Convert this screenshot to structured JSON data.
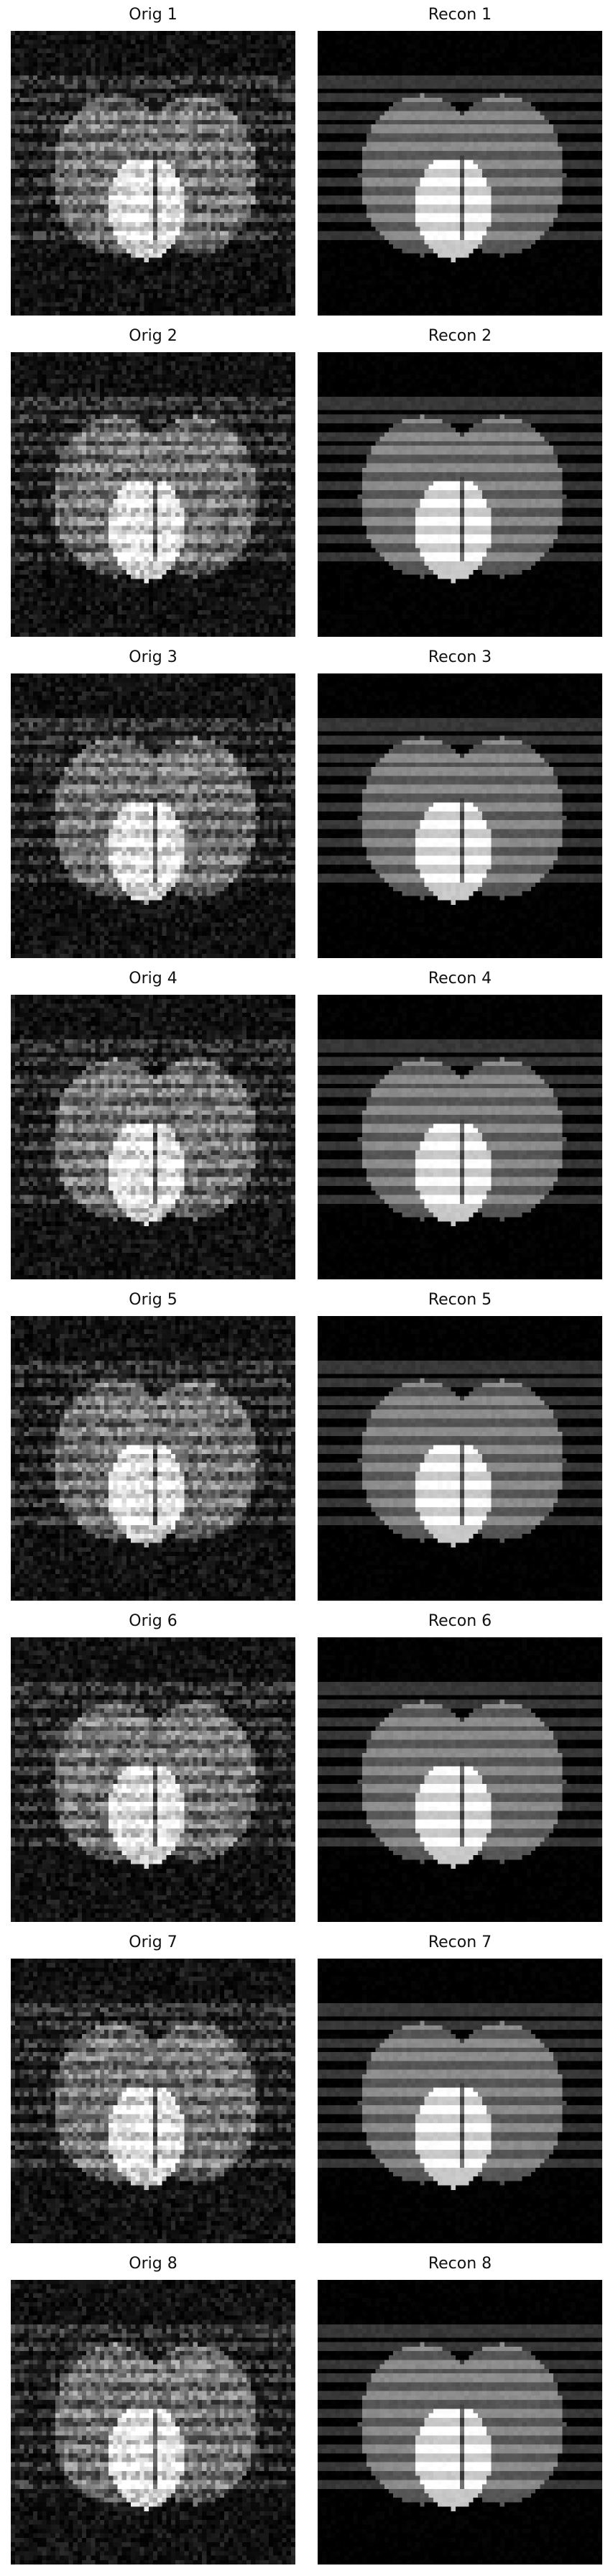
{
  "figure": {
    "background": "#ffffff",
    "panels": [
      {
        "title": "Orig 1",
        "kind": "orig",
        "seed": 11
      },
      {
        "title": "Recon 1",
        "kind": "recon",
        "seed": 12
      },
      {
        "title": "Orig 2",
        "kind": "orig",
        "seed": 21
      },
      {
        "title": "Recon 2",
        "kind": "recon",
        "seed": 22
      },
      {
        "title": "Orig 3",
        "kind": "orig",
        "seed": 31
      },
      {
        "title": "Recon 3",
        "kind": "recon",
        "seed": 32
      },
      {
        "title": "Orig 4",
        "kind": "orig",
        "seed": 41
      },
      {
        "title": "Recon 4",
        "kind": "recon",
        "seed": 42
      },
      {
        "title": "Orig 5",
        "kind": "orig",
        "seed": 51
      },
      {
        "title": "Recon 5",
        "kind": "recon",
        "seed": 52
      },
      {
        "title": "Orig 6",
        "kind": "orig",
        "seed": 61
      },
      {
        "title": "Recon 6",
        "kind": "recon",
        "seed": 62
      },
      {
        "title": "Orig 7",
        "kind": "orig",
        "seed": 71
      },
      {
        "title": "Recon 7",
        "kind": "recon",
        "seed": 72
      },
      {
        "title": "Orig 8",
        "kind": "orig",
        "seed": 81
      },
      {
        "title": "Recon 8",
        "kind": "recon",
        "seed": 82
      }
    ]
  }
}
